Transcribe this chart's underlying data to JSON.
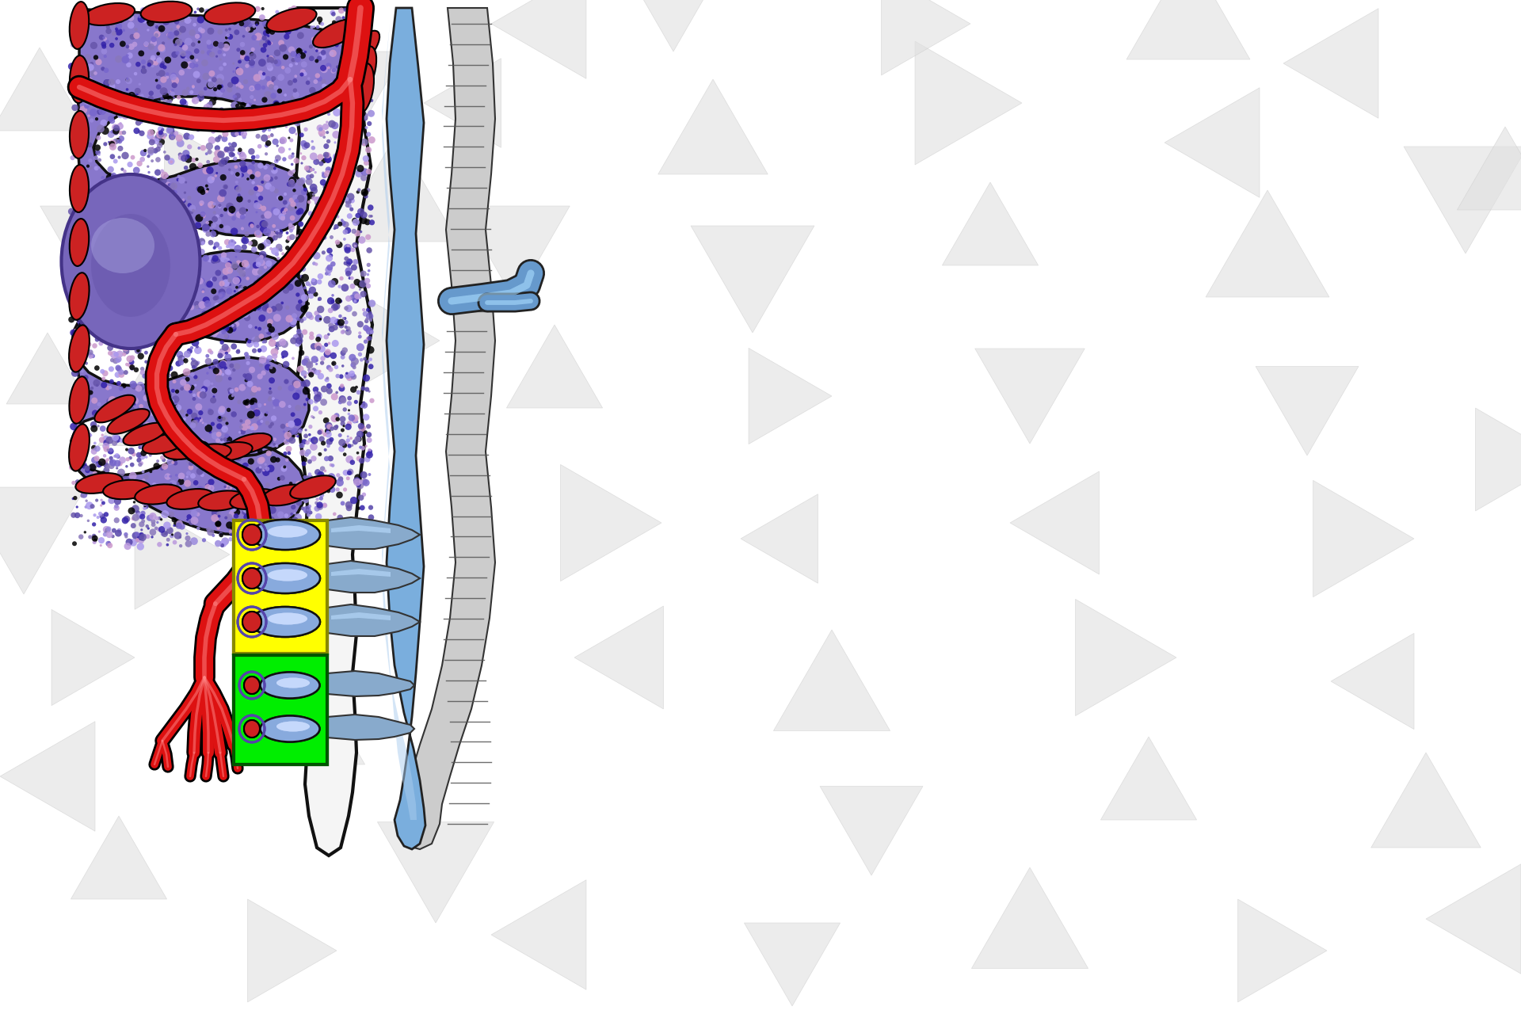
{
  "figsize": [
    19.2,
    12.8
  ],
  "dpi": 100,
  "xlim": [
    0,
    1920
  ],
  "ylim": [
    0,
    1280
  ],
  "bg": "#ffffff",
  "tri_color": "#e0e0e0",
  "tri_edge": "#cccccc",
  "tissue_fill": "#8877CC",
  "tissue_edge": "#111111",
  "tissue_dots": [
    "#9988DD",
    "#AA99EE",
    "#6655AA",
    "#BB99DD",
    "#7766CC",
    "#8877BB",
    "#CC99CC",
    "#5544AA",
    "#000000",
    "#3322AA"
  ],
  "artery_color": "#DD1111",
  "artery_edge": "#000000",
  "artery_highlight": "#FF8888",
  "sinus_fill": "#6699CC",
  "sinus_edge": "#222222",
  "sinus_highlight": "#AADDFF",
  "sinus_wall_fill": "#BBBBBB",
  "sinus_wall_line": "#555555",
  "germinal_fill": "#7766BB",
  "germinal_edge": "#443388",
  "capsule_fill": "#CC2222",
  "capsule_edge": "#000000",
  "yellow_fill": "#FFFF00",
  "yellow_edge": "#888800",
  "green_fill": "#00EE00",
  "green_edge": "#005500",
  "box_capillary_red": "#CC2222",
  "box_sinus_fill": "#88AADD",
  "box_sinus_hl": "#CCDDFF",
  "box_sheath_edge": "#5544AA",
  "spleen_outline_fill": "#f0f0f0",
  "spleen_outline_edge": "#111111"
}
